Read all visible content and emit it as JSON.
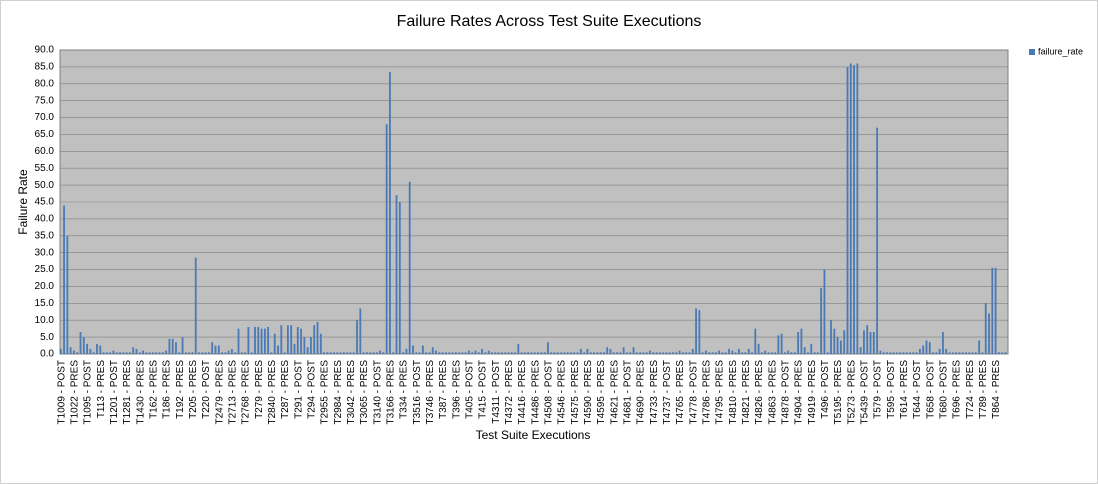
{
  "chart_data": {
    "type": "bar",
    "title": "Failure Rates Across Test Suite Executions",
    "x_label": "Test Suite Executions",
    "y_label": "Failure Rate",
    "legend_position": "right",
    "grid": true,
    "ylim": [
      0,
      90
    ],
    "yticks": [
      {
        "value": 0,
        "label": "0.0"
      },
      {
        "value": 5,
        "label": "5.0"
      },
      {
        "value": 10,
        "label": "10.0"
      },
      {
        "value": 15,
        "label": "15.0"
      },
      {
        "value": 20,
        "label": "20.0"
      },
      {
        "value": 25,
        "label": "25.0"
      },
      {
        "value": 30,
        "label": "30.0"
      },
      {
        "value": 35,
        "label": "35.0"
      },
      {
        "value": 40,
        "label": "40.0"
      },
      {
        "value": 45,
        "label": "45.0"
      },
      {
        "value": 50,
        "label": "50.0"
      },
      {
        "value": 55,
        "label": "55.0"
      },
      {
        "value": 60,
        "label": "60.0"
      },
      {
        "value": 65,
        "label": "65.0"
      },
      {
        "value": 70,
        "label": "70.0"
      },
      {
        "value": 75,
        "label": "75.0"
      },
      {
        "value": 80,
        "label": "80.0"
      },
      {
        "value": 85,
        "label": "85.0"
      },
      {
        "value": 90,
        "label": "90.0"
      }
    ],
    "categories": [
      "T1009 - POST",
      null,
      null,
      null,
      "T1022 - PRES",
      null,
      null,
      null,
      "T1095 - POST",
      null,
      null,
      null,
      "T113 - PRES",
      null,
      null,
      null,
      "T1201 - POST",
      null,
      null,
      null,
      "T1281 - PRES",
      null,
      null,
      null,
      "T1430 - PRES",
      null,
      null,
      null,
      "T162 - PRES",
      null,
      null,
      null,
      "T186 - PRES",
      null,
      null,
      null,
      "T192 - PRES",
      null,
      null,
      null,
      "T205 - PRES",
      null,
      null,
      null,
      "T220 - POST",
      null,
      null,
      null,
      "T2479 - PRES",
      null,
      null,
      null,
      "T2713 - PRES",
      null,
      null,
      null,
      "T2768 - PRES",
      null,
      null,
      null,
      "T279 - PRES",
      null,
      null,
      null,
      "T2840 - PRES",
      null,
      null,
      null,
      "T287 - PRES",
      null,
      null,
      null,
      "T291 - POST",
      null,
      null,
      null,
      "T294 - POST",
      null,
      null,
      null,
      "T2955 - PRES",
      null,
      null,
      null,
      "T2984 - PRES",
      null,
      null,
      null,
      "T3042 - PRES",
      null,
      null,
      null,
      "T3065 - PRES",
      null,
      null,
      null,
      "T3140 - POST",
      null,
      null,
      null,
      "T3166 - PRES",
      null,
      null,
      null,
      "T334 - PRES",
      null,
      null,
      null,
      "T3516 - POST",
      null,
      null,
      null,
      "T3746 - PRES",
      null,
      null,
      null,
      "T387 - PRES",
      null,
      null,
      null,
      "T396 - PRES",
      null,
      null,
      null,
      "T405 - POST",
      null,
      null,
      null,
      "T415 - POST",
      null,
      null,
      null,
      "T4311 - POST",
      null,
      null,
      null,
      "T4372 - PRES",
      null,
      null,
      null,
      "T4416 - PRES",
      null,
      null,
      null,
      "T4486 - PRES",
      null,
      null,
      null,
      "T4508 - POST",
      null,
      null,
      null,
      "T4546 - PRES",
      null,
      null,
      null,
      "T4575 - PRES",
      null,
      null,
      null,
      "T4590 - PRES",
      null,
      null,
      null,
      "T4595 - PRES",
      null,
      null,
      null,
      "T4621 - PRES",
      null,
      null,
      null,
      "T4681 - POST",
      null,
      null,
      null,
      "T4690 - PRES",
      null,
      null,
      null,
      "T4733 - PRES",
      null,
      null,
      null,
      "T4737 - POST",
      null,
      null,
      null,
      "T4765 - PRES",
      null,
      null,
      null,
      "T4778 - POST",
      null,
      null,
      null,
      "T4786 - PRES",
      null,
      null,
      null,
      "T4795 - PRES",
      null,
      null,
      null,
      "T4810 - PRES",
      null,
      null,
      null,
      "T4821 - PRES",
      null,
      null,
      null,
      "T4826 - PRES",
      null,
      null,
      null,
      "T4863 - PRES",
      null,
      null,
      null,
      "T4878 - POST",
      null,
      null,
      null,
      "T4904 - PRES",
      null,
      null,
      null,
      "T4919 - PRES",
      null,
      null,
      null,
      "T496 - POST",
      null,
      null,
      null,
      "T5195 - PRES",
      null,
      null,
      null,
      "T5273 - PRES",
      null,
      null,
      null,
      "T5439 - POST",
      null,
      null,
      null,
      "T579 - POST",
      null,
      null,
      null,
      "T595 - POST",
      null,
      null,
      null,
      "T614 - PRES",
      null,
      null,
      null,
      "T644 - POST",
      null,
      null,
      null,
      "T658 - POST",
      null,
      null,
      null,
      "T680 - POST",
      null,
      null,
      null,
      "T696 - PRES",
      null,
      null,
      null,
      "T724 - PRES",
      null,
      null,
      null,
      "T789 - PRES",
      null,
      null,
      null,
      "T864 - PRES",
      null,
      null,
      null
    ],
    "series": [
      {
        "name": "failure_rate",
        "color": "#4a7ab5",
        "values": [
          1.5,
          44,
          35,
          2,
          1,
          0.5,
          6.5,
          5,
          3,
          1.5,
          0.5,
          3,
          2.5,
          0.5,
          0.5,
          0.5,
          1,
          0.5,
          0.5,
          0.5,
          0.5,
          0.5,
          2,
          1.5,
          0.5,
          1,
          0.5,
          0.5,
          0.5,
          0.5,
          0.5,
          0.5,
          1,
          4.5,
          4.5,
          3.5,
          0.5,
          5,
          0.5,
          0.5,
          0.5,
          28.5,
          0.5,
          0.5,
          0.5,
          0.5,
          3.5,
          2.5,
          2.5,
          0.5,
          0.5,
          1,
          1.5,
          0.5,
          7.5,
          0.5,
          0.5,
          8,
          0.5,
          8,
          8,
          7.5,
          7.5,
          8,
          0.5,
          6,
          2.5,
          8.5,
          0.5,
          8.5,
          8.5,
          3,
          8,
          7.5,
          5,
          2,
          5,
          8.5,
          9.5,
          6,
          0.5,
          0.5,
          0.5,
          0.5,
          0.5,
          0.5,
          0.5,
          0.5,
          0.5,
          0.5,
          10,
          13.5,
          0.5,
          0.5,
          0.5,
          0.5,
          0.5,
          1,
          0.5,
          68,
          83.5,
          0.5,
          47,
          45,
          0.5,
          1.5,
          51,
          2.5,
          0.5,
          0.5,
          2.5,
          0.5,
          0.5,
          2,
          1,
          0.5,
          0.5,
          0.5,
          0.5,
          0.5,
          0.5,
          0.5,
          0.5,
          0.5,
          1,
          0.5,
          1,
          0.5,
          1.5,
          0.5,
          1,
          0.5,
          0.5,
          0.5,
          0.5,
          0.5,
          0.5,
          0.5,
          0.5,
          3,
          0.5,
          0.5,
          0.5,
          0.5,
          0.5,
          0.5,
          0.5,
          0.5,
          3.5,
          0.5,
          0.5,
          0.5,
          0.5,
          0.5,
          0.5,
          0.5,
          0.5,
          0.5,
          1.5,
          0.5,
          1.5,
          0.5,
          0.5,
          0.5,
          0.5,
          0.5,
          2,
          1.5,
          0.5,
          0.5,
          0.5,
          2,
          0.5,
          0.5,
          2,
          0.5,
          0.5,
          0.5,
          0.5,
          1,
          0.5,
          0.5,
          0.5,
          0.5,
          0.5,
          0.5,
          0.5,
          0.5,
          1,
          0.5,
          0.5,
          0.5,
          1.5,
          13.5,
          13,
          0.5,
          1,
          0.5,
          0.5,
          0.5,
          1,
          0.5,
          0.5,
          1.5,
          1,
          0.5,
          1.5,
          0.5,
          0.5,
          1.5,
          0.5,
          7.5,
          3,
          0.5,
          1,
          0.5,
          0.5,
          0.5,
          5.5,
          6,
          0.5,
          1,
          0.5,
          0.5,
          6.5,
          7.5,
          2,
          0.5,
          3,
          0.5,
          0.5,
          19.5,
          25,
          0.5,
          10,
          7.5,
          5,
          4,
          7,
          85,
          86,
          85.5,
          86,
          2,
          7,
          8.5,
          6.5,
          6.5,
          67,
          1,
          0.5,
          0.5,
          0.5,
          0.5,
          0.5,
          0.5,
          0.5,
          0.5,
          0.5,
          0.5,
          0.5,
          1.5,
          2.5,
          4,
          3.5,
          0.5,
          0.5,
          1.5,
          6.5,
          1.5,
          0.5,
          0.5,
          0.5,
          0.5,
          0.5,
          0.5,
          0.5,
          0.5,
          0.5,
          4,
          0.5,
          15,
          12,
          25.5,
          25.5,
          0.5,
          0.5,
          0.5
        ]
      }
    ]
  }
}
